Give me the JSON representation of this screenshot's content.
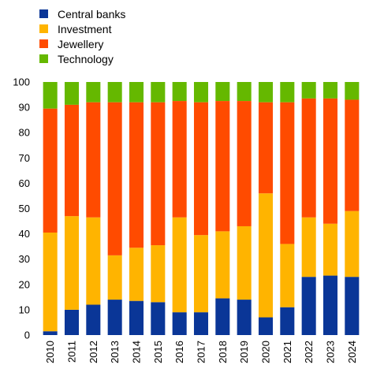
{
  "chart_data": {
    "type": "bar",
    "stacked": true,
    "categories": [
      "2010",
      "2011",
      "2012",
      "2013",
      "2014",
      "2015",
      "2016",
      "2017",
      "2018",
      "2019",
      "2020",
      "2021",
      "2022",
      "2023",
      "2024"
    ],
    "ylim": [
      0,
      100
    ],
    "yticks": [
      0,
      10,
      20,
      30,
      40,
      50,
      60,
      70,
      80,
      90,
      100
    ],
    "legend_position": "top-left",
    "series": [
      {
        "name": "Central banks",
        "color": "#0a3697",
        "values": [
          1.5,
          10,
          12,
          14,
          13.5,
          13,
          9,
          9,
          14.5,
          14,
          7,
          11,
          23,
          23.5,
          23
        ]
      },
      {
        "name": "Investment",
        "color": "#ffb400",
        "values": [
          39,
          37,
          34.5,
          17.5,
          21,
          22.5,
          37.5,
          30.5,
          26.5,
          29,
          49,
          25,
          23.5,
          20.5,
          26
        ]
      },
      {
        "name": "Jewellery",
        "color": "#ff4b00",
        "values": [
          49,
          44,
          45.5,
          60.5,
          57.5,
          56.5,
          46,
          52.5,
          51.5,
          49.5,
          36,
          56,
          47,
          49.5,
          44
        ]
      },
      {
        "name": "Technology",
        "color": "#65b800",
        "values": [
          10.5,
          9,
          8,
          8,
          8,
          8,
          7.5,
          8,
          7.5,
          7.5,
          8,
          8,
          6.5,
          6.5,
          7
        ]
      }
    ]
  }
}
